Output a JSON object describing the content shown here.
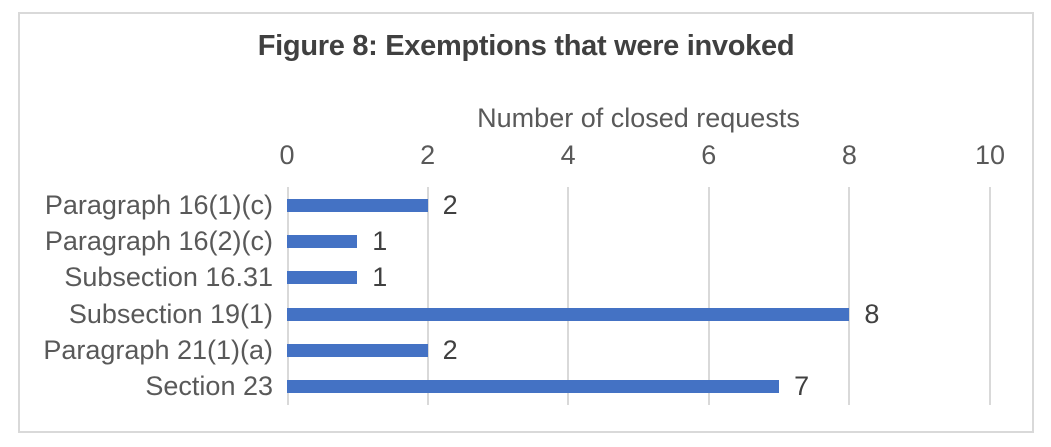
{
  "figure": {
    "title": "Figure 8: Exemptions that were invoked"
  },
  "chart_data": {
    "type": "bar",
    "orientation": "horizontal",
    "title": "Figure 8: Exemptions that were invoked",
    "xlabel": "Number of closed requests",
    "axis_position": "top",
    "categories": [
      "Paragraph 16(1)(c)",
      "Paragraph 16(2)(c)",
      "Subsection 16.31",
      "Subsection 19(1)",
      "Paragraph 21(1)(a)",
      "Section 23"
    ],
    "values": [
      2,
      1,
      1,
      8,
      2,
      7
    ],
    "data_labels": [
      2,
      1,
      1,
      8,
      2,
      7
    ],
    "xticks": [
      0,
      2,
      4,
      6,
      8,
      10
    ],
    "xlim": [
      0,
      10
    ],
    "grid": "vertical",
    "legend": "none",
    "bar_color": "#4472C4",
    "gridline_color": "#D9D9D9",
    "border_color": "#D9D9D9",
    "text_color": "#595959",
    "data_label_color": "#404040"
  }
}
